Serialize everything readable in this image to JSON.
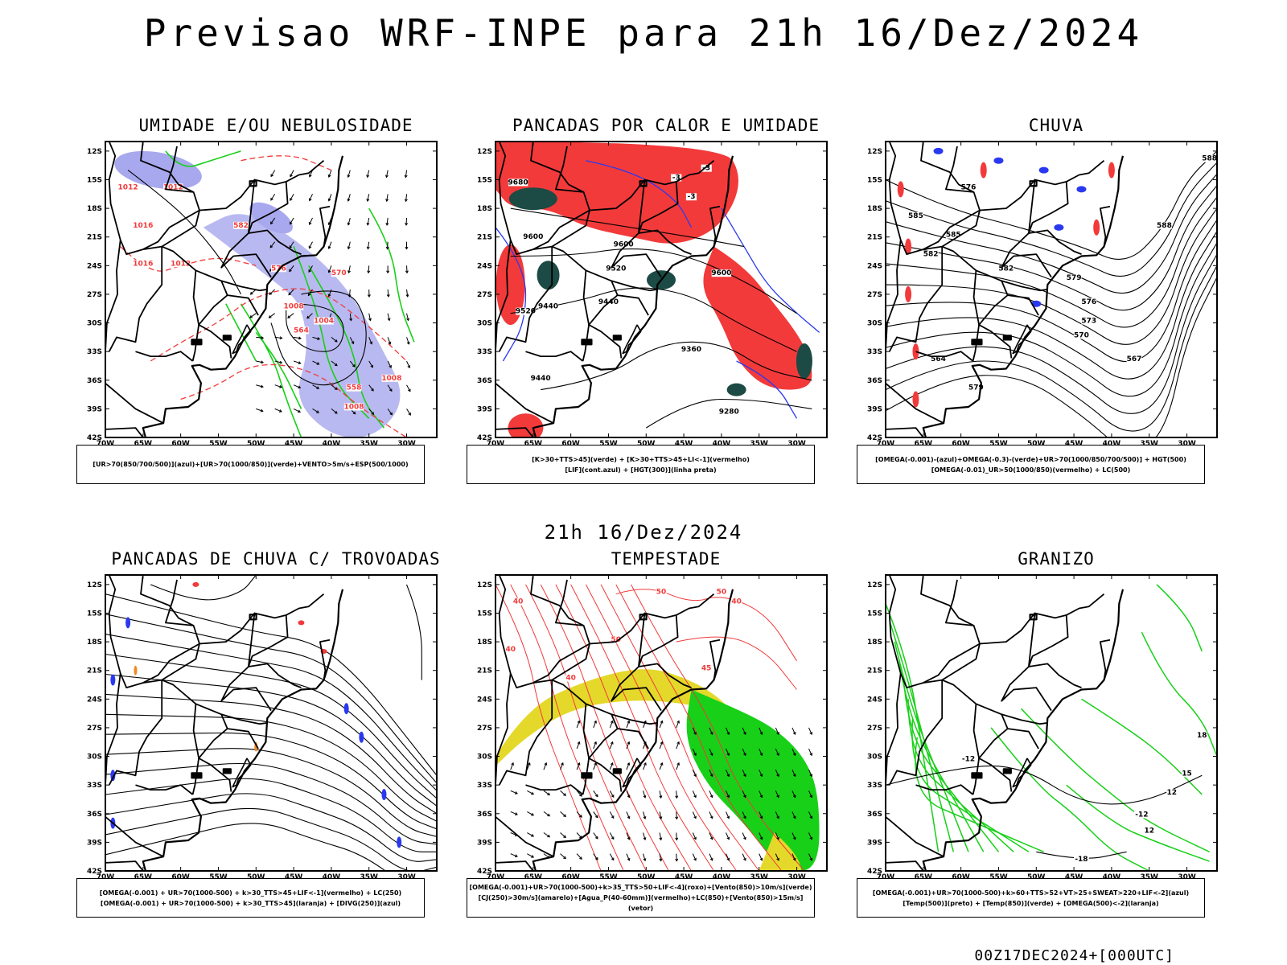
{
  "header": {
    "title": "Previsao WRF-INPE  para 21h 16/Dez/2024",
    "subtitle": "21h 16/Dez/2024",
    "footer": "00Z17DEC2024+[000UTC]"
  },
  "axes": {
    "lat_labels": [
      "12S",
      "15S",
      "18S",
      "21S",
      "24S",
      "27S",
      "30S",
      "33S",
      "36S",
      "39S",
      "42S"
    ],
    "lon_labels": [
      "70W",
      "65W",
      "60W",
      "55W",
      "50W",
      "45W",
      "40W",
      "35W",
      "30W"
    ]
  },
  "panels": [
    {
      "id": "umidade",
      "title": "UMIDADE E/OU NEBULOSIDADE",
      "legend": [
        "[UR>70(850/700/500)](azul)+[UR>70(1000/850)](verde)+VENTO>5m/s+ESP(500/1000)"
      ],
      "contours": [
        "1012",
        "1012",
        "1012",
        "1016",
        "1016",
        "1008",
        "1004",
        "1008",
        "1008",
        "576",
        "570",
        "564",
        "558",
        "582"
      ]
    },
    {
      "id": "pancadas",
      "title": "PANCADAS POR CALOR E UMIDADE",
      "legend": [
        "[K>30+TTS>45](verde)  +  [K>30+TTS>45+LI<-1](vermelho)",
        "[LIF](cont.azul)  +  [HGT(300)](linha preta)"
      ],
      "contours": [
        "9680",
        "9600",
        "9600",
        "9520",
        "9520",
        "9440",
        "9440",
        "9360",
        "9440",
        "9280",
        "9600",
        "-3",
        "-3",
        "-3"
      ]
    },
    {
      "id": "chuva",
      "title": "CHUVA",
      "legend": [
        "[OMEGA(-0.001)-(azul)+OMEGA(-0.3)-(verde)+UR>70(1000/850/700/500)]  +  HGT(500)",
        "[OMEGA(-0.01)_UR>50(1000/850)(vermelho)  +  LC(500)"
      ],
      "contours": [
        "588",
        "588",
        "585",
        "582",
        "579",
        "576",
        "573",
        "570",
        "567",
        "564",
        "579",
        "576",
        "585",
        "582"
      ]
    },
    {
      "id": "trovoadas",
      "title": "PANCADAS DE CHUVA C/ TROVOADAS",
      "legend": [
        "[OMEGA(-0.001)  +  UR>70(1000-500)  +  k>30_TTS>45+LIF<-1](vermelho)  +  LC(250)",
        "[OMEGA(-0.001)  +  UR>70(1000-500)  +  k>30_TTS>45](laranja)  +  [DIVG(250)](azul)"
      ],
      "contours": []
    },
    {
      "id": "tempestade",
      "title": "TEMPESTADE",
      "legend": [
        "[OMEGA(-0.001)+UR>70(1000-500)+k>35_TTS>50+LIF<-4](roxo)+[Vento(850)>10m/s](verde)",
        "[CJ(250)>30m/s](amarelo)+[Agua_P(40-60mm)](vermelho)+LC(850)+[Vento(850)>15m/s](vetor)"
      ],
      "contours": [
        "40",
        "50",
        "40",
        "50",
        "40",
        "40",
        "50",
        "45"
      ]
    },
    {
      "id": "granizo",
      "title": "GRANIZO",
      "legend": [
        "[OMEGA(-0.001)+UR>70(1000-500)+k>60+TTS>52+VT>25+SWEAT>220+LIF<-2](azul)",
        "[Temp(500)](preto)  +  [Temp(850)](verde)  +  [OMEGA(500)<-2](laranja)"
      ],
      "contours": [
        "-12",
        "-12",
        "-18",
        "12",
        "15",
        "18",
        "12"
      ]
    }
  ],
  "colors": {
    "blue": "#2a39f0",
    "green": "#18d018",
    "red": "#f23a3a",
    "dark_green": "#1c4a44",
    "lavender": "#a8a8ee",
    "yellow": "#e4d82a",
    "orange": "#f08a20",
    "black": "#000000"
  }
}
